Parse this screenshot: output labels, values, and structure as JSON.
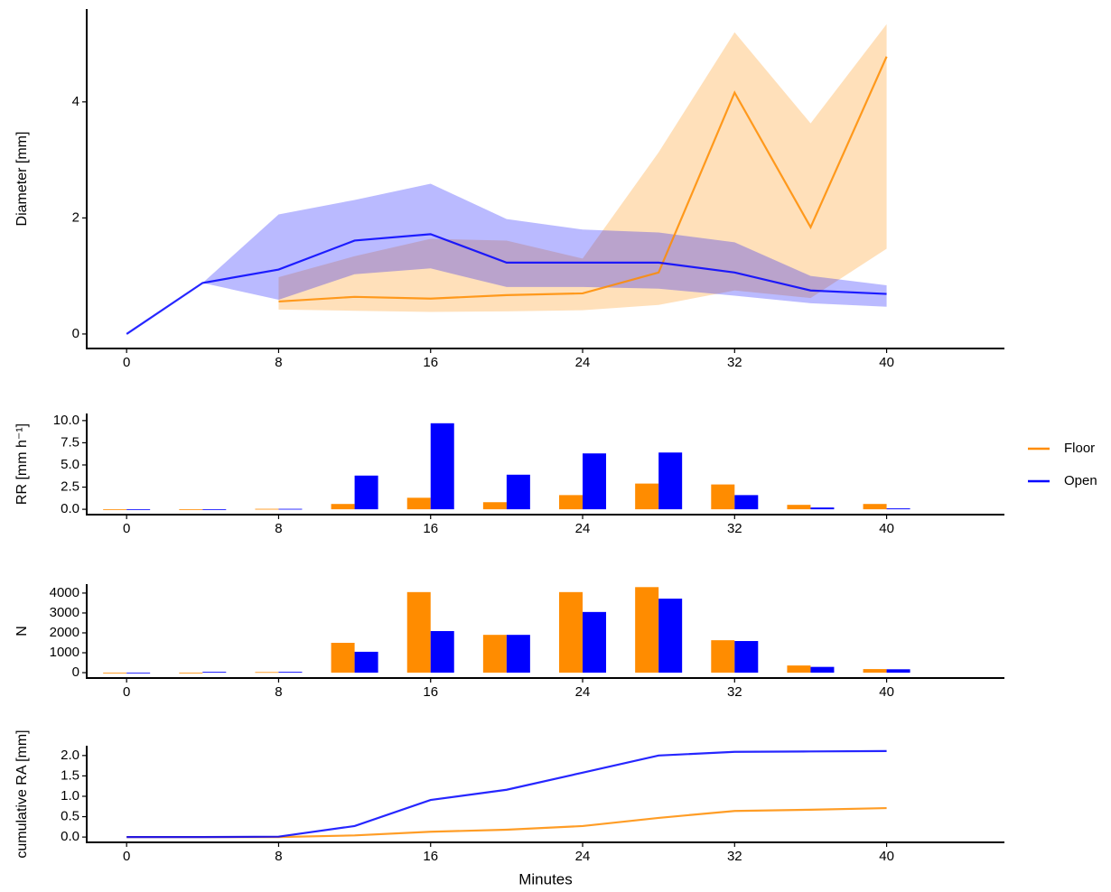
{
  "chart_data": [
    {
      "type": "line",
      "ylabel": "Diameter [mm]",
      "x": [
        0,
        4,
        8,
        12,
        16,
        20,
        24,
        28,
        32,
        36,
        40
      ],
      "xlim": [
        -2.1,
        46.2
      ],
      "xticks": [
        0,
        8,
        16,
        24,
        32,
        40
      ],
      "ylim": [
        -0.25,
        5.6
      ],
      "yticks": [
        0,
        2,
        4
      ],
      "series": [
        {
          "name": "Floor",
          "color": "#ff8c00",
          "values": [
            null,
            null,
            0.56,
            0.64,
            0.61,
            0.67,
            0.7,
            1.06,
            4.16,
            1.84,
            4.78
          ],
          "lower": [
            null,
            null,
            0.42,
            0.4,
            0.38,
            0.39,
            0.41,
            0.5,
            0.75,
            0.62,
            1.47
          ],
          "upper": [
            null,
            null,
            0.98,
            1.34,
            1.64,
            1.61,
            1.3,
            3.13,
            5.2,
            3.63,
            5.34
          ]
        },
        {
          "name": "Open",
          "color": "#0000ff",
          "values": [
            0,
            0.88,
            1.11,
            1.61,
            1.72,
            1.23,
            1.23,
            1.23,
            1.06,
            0.75,
            0.69
          ],
          "lower": [
            0,
            0.88,
            0.59,
            1.03,
            1.13,
            0.81,
            0.81,
            0.78,
            0.66,
            0.53,
            0.47
          ],
          "upper": [
            0,
            0.88,
            2.06,
            2.31,
            2.59,
            1.98,
            1.8,
            1.75,
            1.58,
            1.0,
            0.84
          ]
        }
      ]
    },
    {
      "type": "bar",
      "ylabel": "RR [mm h⁻¹]",
      "legend": "right",
      "x": [
        0,
        4,
        8,
        12,
        16,
        20,
        24,
        28,
        32,
        36,
        40
      ],
      "xlim": [
        -2.1,
        46.2
      ],
      "xticks": [
        0,
        8,
        16,
        24,
        32,
        40
      ],
      "ylim": [
        -0.6,
        10.8
      ],
      "yticks": [
        {
          "value": 0,
          "label": "0.0"
        },
        {
          "value": 2.5,
          "label": "2.5"
        },
        {
          "value": 5,
          "label": "5.0"
        },
        {
          "value": 7.5,
          "label": "7.5"
        },
        {
          "value": 10,
          "label": "10.0"
        }
      ],
      "series": [
        {
          "name": "Floor",
          "color": "#ff8c00",
          "values": [
            0,
            0,
            0.05,
            0.6,
            1.3,
            0.8,
            1.6,
            2.9,
            2.8,
            0.5,
            0.6
          ]
        },
        {
          "name": "Open",
          "color": "#0000ff",
          "values": [
            0,
            0,
            0.05,
            3.8,
            9.7,
            3.9,
            6.3,
            6.4,
            1.6,
            0.2,
            0.1
          ]
        }
      ]
    },
    {
      "type": "bar",
      "ylabel": "N",
      "x": [
        0,
        4,
        8,
        12,
        16,
        20,
        24,
        28,
        32,
        36,
        40
      ],
      "xlim": [
        -2.1,
        46.2
      ],
      "xticks": [
        0,
        8,
        16,
        24,
        32,
        40
      ],
      "ylim": [
        -270,
        4450
      ],
      "yticks": [
        0,
        1000,
        2000,
        3000,
        4000
      ],
      "series": [
        {
          "name": "Floor",
          "color": "#ff8c00",
          "values": [
            0,
            0,
            30,
            1500,
            4050,
            1900,
            4050,
            4300,
            1630,
            360,
            180
          ]
        },
        {
          "name": "Open",
          "color": "#0000ff",
          "values": [
            0,
            40,
            40,
            1050,
            2090,
            1900,
            3050,
            3720,
            1590,
            290,
            170
          ]
        }
      ]
    },
    {
      "type": "line",
      "ylabel": "cumulative RA [mm]",
      "xlabel": "Minutes",
      "x": [
        0,
        4,
        8,
        12,
        16,
        20,
        24,
        28,
        32,
        36,
        40
      ],
      "xlim": [
        -2.1,
        46.2
      ],
      "xticks": [
        0,
        8,
        16,
        24,
        32,
        40
      ],
      "ylim": [
        -0.13,
        2.24
      ],
      "yticks": [
        {
          "value": 0,
          "label": "0.0"
        },
        {
          "value": 0.5,
          "label": "0.5"
        },
        {
          "value": 1,
          "label": "1.0"
        },
        {
          "value": 1.5,
          "label": "1.5"
        },
        {
          "value": 2,
          "label": "2.0"
        }
      ],
      "series": [
        {
          "name": "Floor",
          "color": "#ff8c00",
          "values": [
            0,
            0,
            0,
            0.04,
            0.13,
            0.18,
            0.27,
            0.47,
            0.64,
            0.67,
            0.71
          ]
        },
        {
          "name": "Open",
          "color": "#0000ff",
          "values": [
            0,
            0,
            0.01,
            0.27,
            0.91,
            1.16,
            1.58,
            2.0,
            2.09,
            2.1,
            2.11
          ]
        }
      ]
    }
  ]
}
